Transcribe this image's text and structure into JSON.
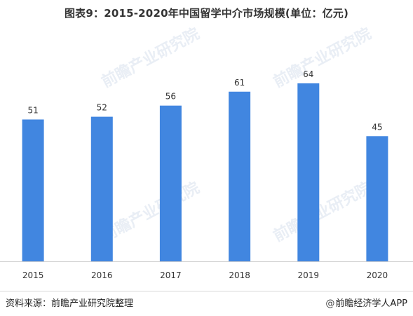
{
  "chart_data": {
    "type": "bar",
    "title": "图表9：2015-2020年中国留学中介市场规模(单位：亿元)",
    "categories": [
      "2015",
      "2016",
      "2017",
      "2018",
      "2019",
      "2020"
    ],
    "values": [
      51,
      52,
      56,
      61,
      64,
      45
    ],
    "ylim": [
      0,
      70
    ],
    "grid": false,
    "bar_color": "#4186e0",
    "xlabel": "",
    "ylabel": ""
  },
  "footer": {
    "source": "资料来源：前瞻产业研究院整理",
    "credit": "前瞻经济学人APP",
    "credit_icon": "at-sign-icon"
  },
  "watermark": {
    "text": "前瞻产业研究院"
  }
}
